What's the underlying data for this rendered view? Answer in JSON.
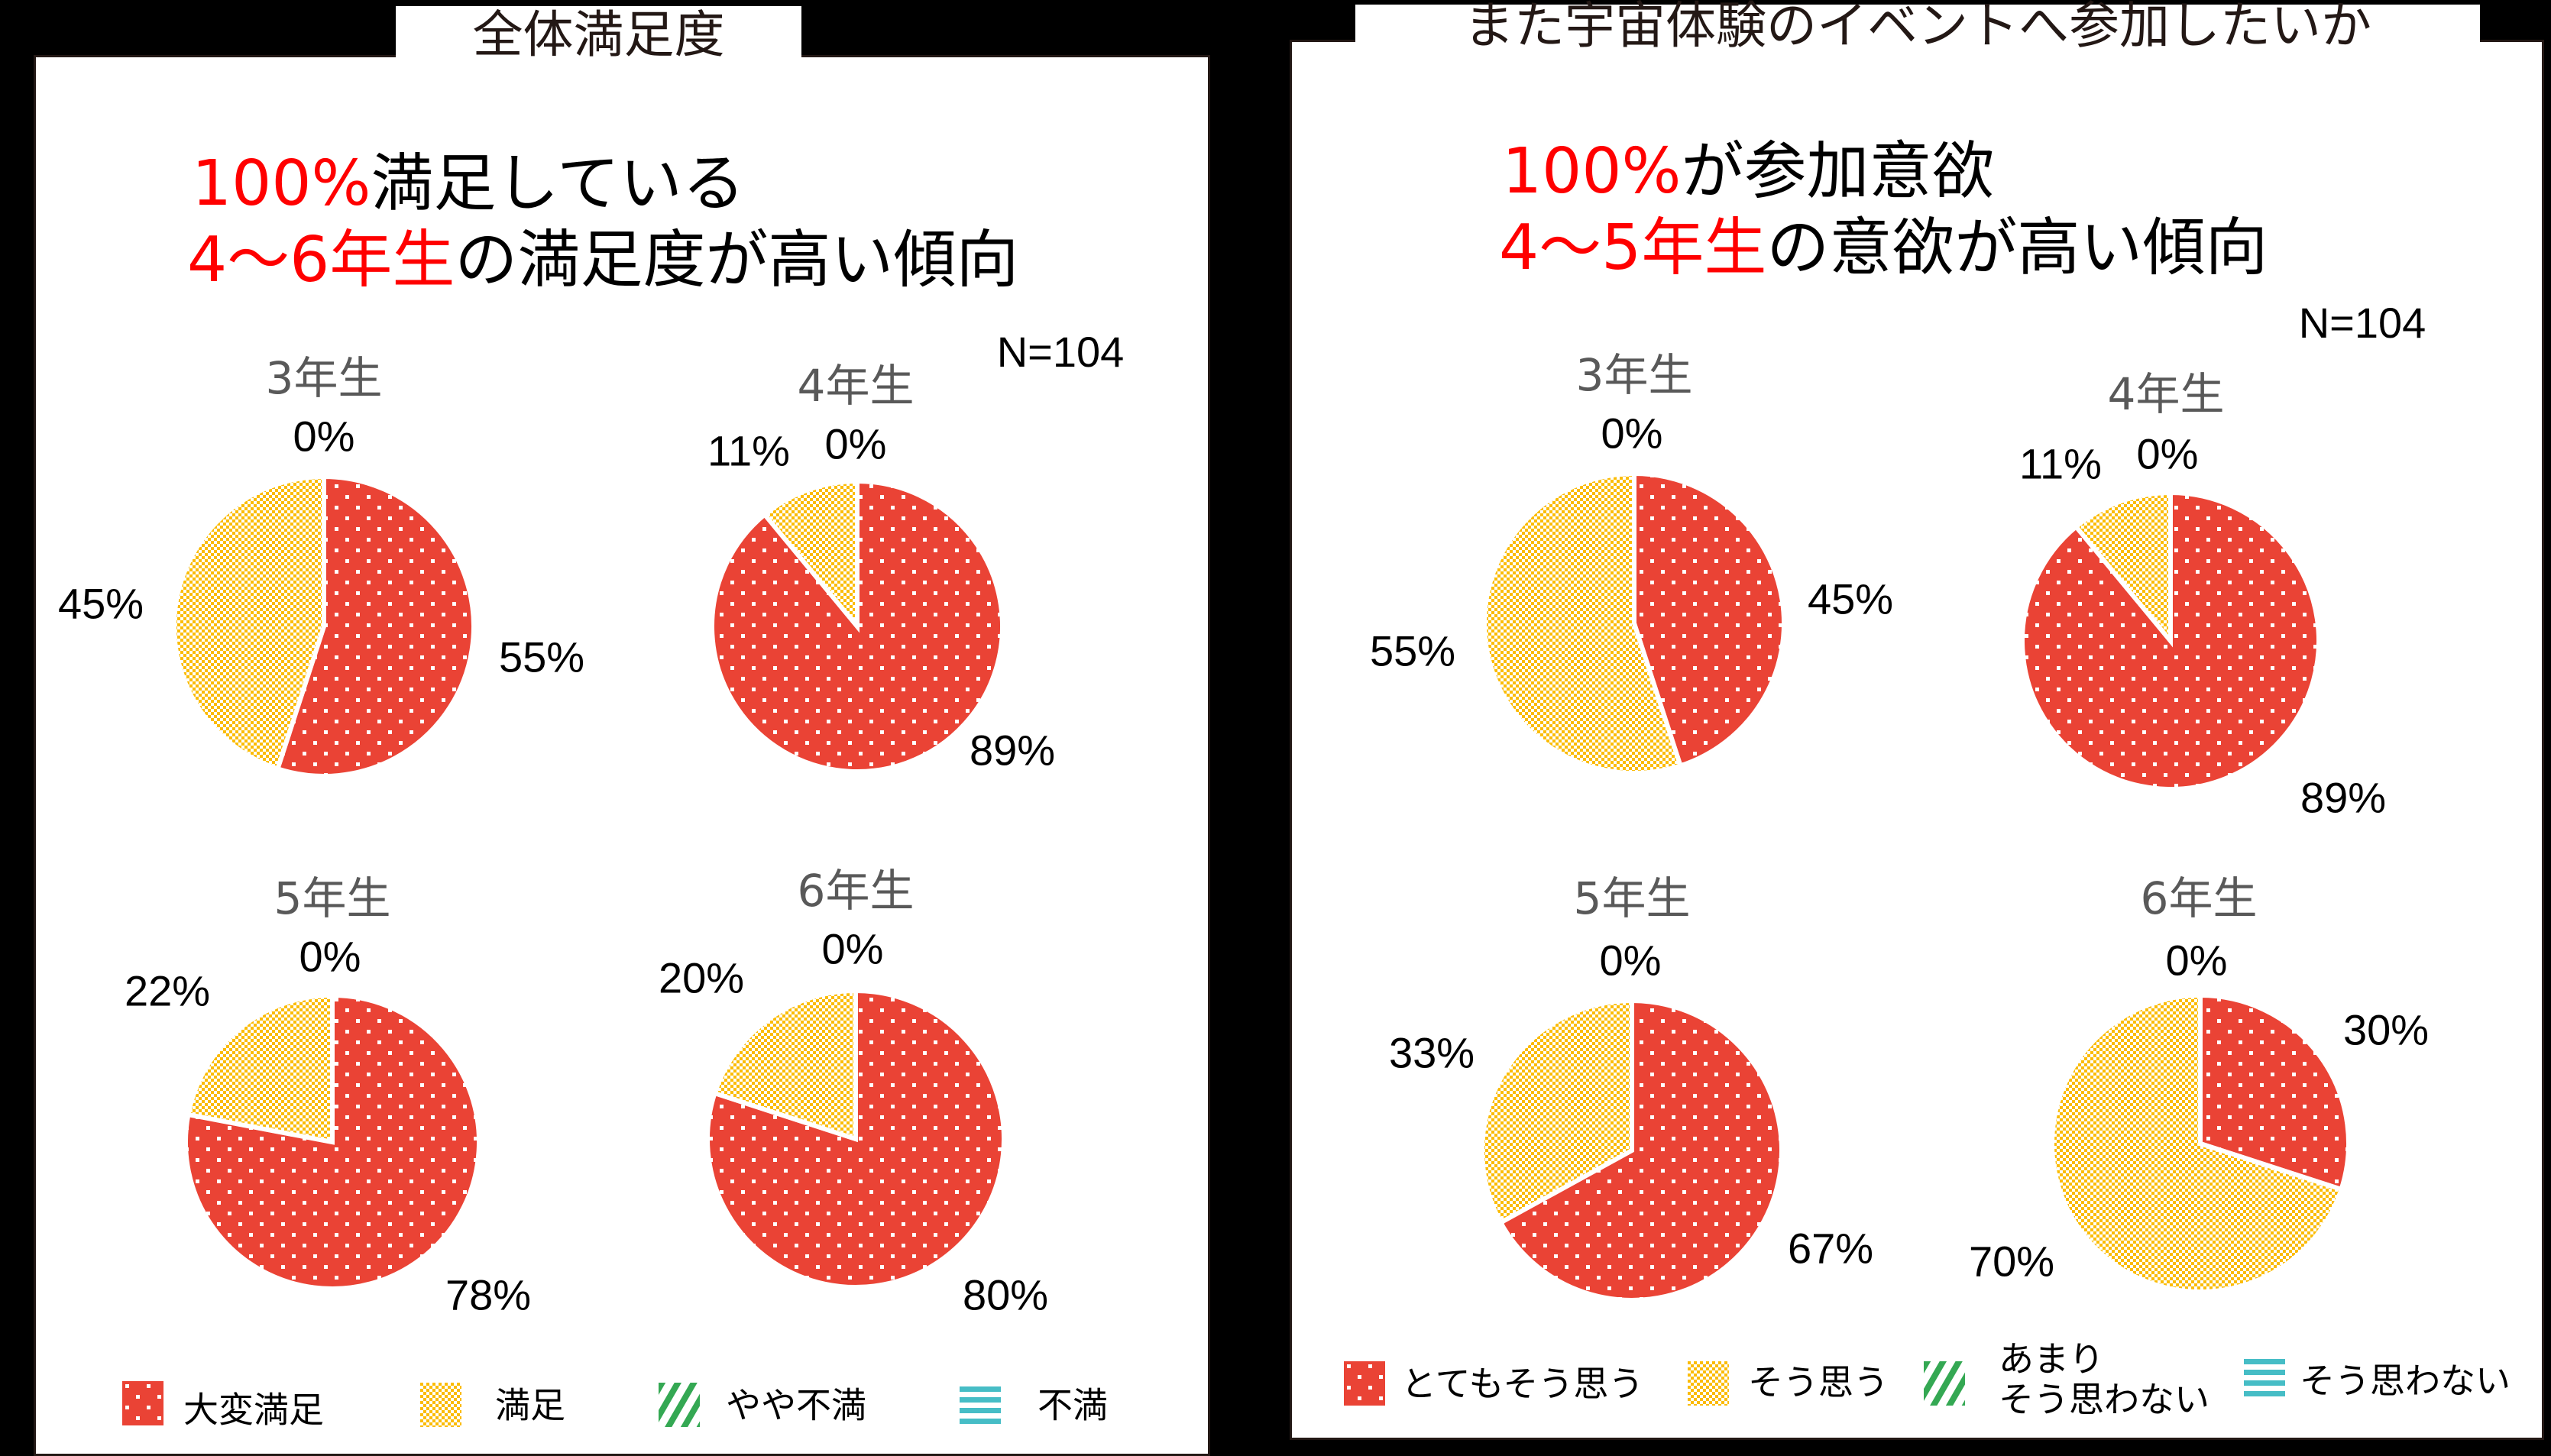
{
  "left_panel": {
    "tab_title": "全体満足度",
    "headline": {
      "line1_highlight": "100%",
      "line1_rest": "満足している",
      "line2_highlight": "4～6年生",
      "line2_rest": "の満足度が高い傾向"
    },
    "sample_size": "N=104",
    "legend": [
      {
        "label": "大変満足",
        "color": "#EA4335",
        "pattern": "dots"
      },
      {
        "label": "満足",
        "color": "#FBBC04",
        "pattern": "checker"
      },
      {
        "label": "やや不満",
        "color": "#34A853",
        "pattern": "diagonal-stripes"
      },
      {
        "label": "不満",
        "color": "#46BDC6",
        "pattern": "horizontal-stripes"
      }
    ]
  },
  "right_panel": {
    "tab_title": "また宇宙体験のイベントへ参加したいか",
    "headline": {
      "line1_highlight": "100%",
      "line1_rest": "が参加意欲",
      "line2_highlight": "4～5年生",
      "line2_rest": "の意欲が高い傾向"
    },
    "sample_size": "N=104",
    "legend": [
      {
        "label": "とてもそう思う",
        "color": "#EA4335",
        "pattern": "dots"
      },
      {
        "label": "そう思う",
        "color": "#FBBC04",
        "pattern": "checker"
      },
      {
        "label_line1": "あまり",
        "label_line2": "そう思わない",
        "color": "#34A853",
        "pattern": "diagonal-stripes"
      },
      {
        "label": "そう思わない",
        "color": "#46BDC6",
        "pattern": "horizontal-stripes"
      }
    ]
  },
  "chart_data": [
    {
      "type": "pie",
      "title": "全体満足度",
      "subtitle": "100%満足している / 4～6年生の満足度が高い傾向",
      "n": 104,
      "legend": [
        "大変満足",
        "満足",
        "やや不満",
        "不満"
      ],
      "legend_position": "bottom",
      "charts": [
        {
          "title": "3年生",
          "values": [
            55,
            45,
            0,
            0
          ],
          "labels": [
            "55%",
            "45%",
            "0%",
            "0%"
          ]
        },
        {
          "title": "4年生",
          "values": [
            89,
            11,
            0,
            0
          ],
          "labels": [
            "89%",
            "11%",
            "0%",
            "0%"
          ]
        },
        {
          "title": "5年生",
          "values": [
            78,
            22,
            0,
            0
          ],
          "labels": [
            "78%",
            "22%",
            "0%",
            "0%"
          ]
        },
        {
          "title": "6年生",
          "values": [
            80,
            20,
            0,
            0
          ],
          "labels": [
            "80%",
            "20%",
            "0%",
            "0%"
          ]
        }
      ]
    },
    {
      "type": "pie",
      "title": "また宇宙体験のイベントへ参加したいか",
      "subtitle": "100%が参加意欲 / 4～5年生の意欲が高い傾向",
      "n": 104,
      "legend": [
        "とてもそう思う",
        "そう思う",
        "あまりそう思わない",
        "そう思わない"
      ],
      "legend_position": "bottom",
      "charts": [
        {
          "title": "3年生",
          "values": [
            45,
            55,
            0,
            0
          ],
          "labels": [
            "45%",
            "55%",
            "0%",
            "0%"
          ]
        },
        {
          "title": "4年生",
          "values": [
            89,
            11,
            0,
            0
          ],
          "labels": [
            "89%",
            "11%",
            "0%",
            "0%"
          ]
        },
        {
          "title": "5年生",
          "values": [
            67,
            33,
            0,
            0
          ],
          "labels": [
            "67%",
            "33%",
            "0%",
            "0%"
          ]
        },
        {
          "title": "6年生",
          "values": [
            30,
            70,
            0,
            0
          ],
          "labels": [
            "30%",
            "70%",
            "0%",
            "0%"
          ]
        }
      ]
    }
  ],
  "pie_labels": {
    "left": [
      {
        "title": "3年生",
        "zero": "0%",
        "a": "55%",
        "b": "45%"
      },
      {
        "title": "4年生",
        "zero": "0%",
        "a": "89%",
        "b": "11%"
      },
      {
        "title": "5年生",
        "zero": "0%",
        "a": "78%",
        "b": "22%"
      },
      {
        "title": "6年生",
        "zero": "0%",
        "a": "80%",
        "b": "20%"
      }
    ],
    "right": [
      {
        "title": "3年生",
        "zero": "0%",
        "a": "45%",
        "b": "55%"
      },
      {
        "title": "4年生",
        "zero": "0%",
        "a": "89%",
        "b": "11%"
      },
      {
        "title": "5年生",
        "zero": "0%",
        "a": "67%",
        "b": "33%"
      },
      {
        "title": "6年生",
        "zero": "0%",
        "a": "30%",
        "b": "70%"
      }
    ]
  }
}
